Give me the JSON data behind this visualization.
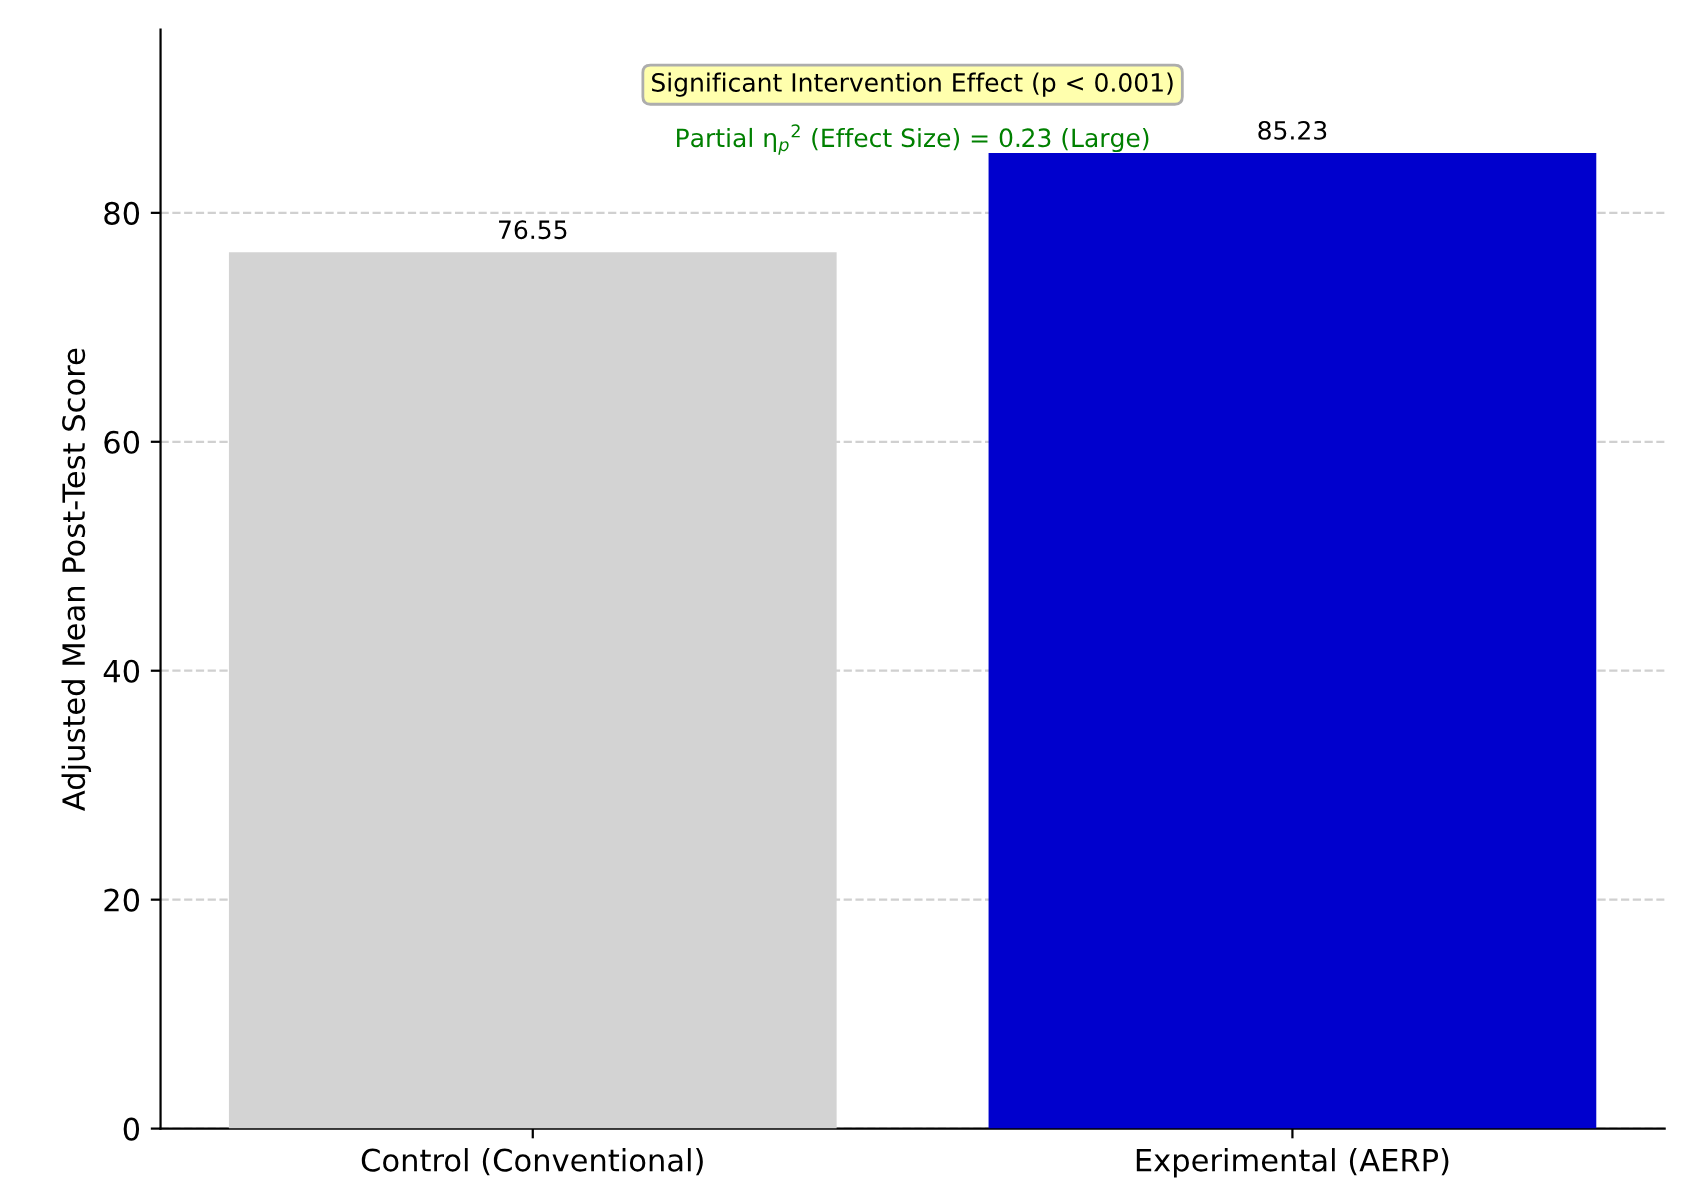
{
  "chart_data": {
    "type": "bar",
    "ylabel": "Adjusted Mean Post-Test Score",
    "categories": [
      "Control (Conventional)",
      "Experimental (AERP)"
    ],
    "values": [
      76.55,
      85.23
    ],
    "colors": [
      "#d3d3d3",
      "#0000cd"
    ],
    "ylim": [
      0,
      96
    ],
    "yticks": [
      0,
      20,
      40,
      60,
      80
    ],
    "grid": "y",
    "data_labels": true,
    "annotations": [
      "Significant Intervention Effect (p < 0.001)",
      "Partial η$_{p}$$^{2}$ (Effect Size) = 0.23 (Large)"
    ]
  }
}
